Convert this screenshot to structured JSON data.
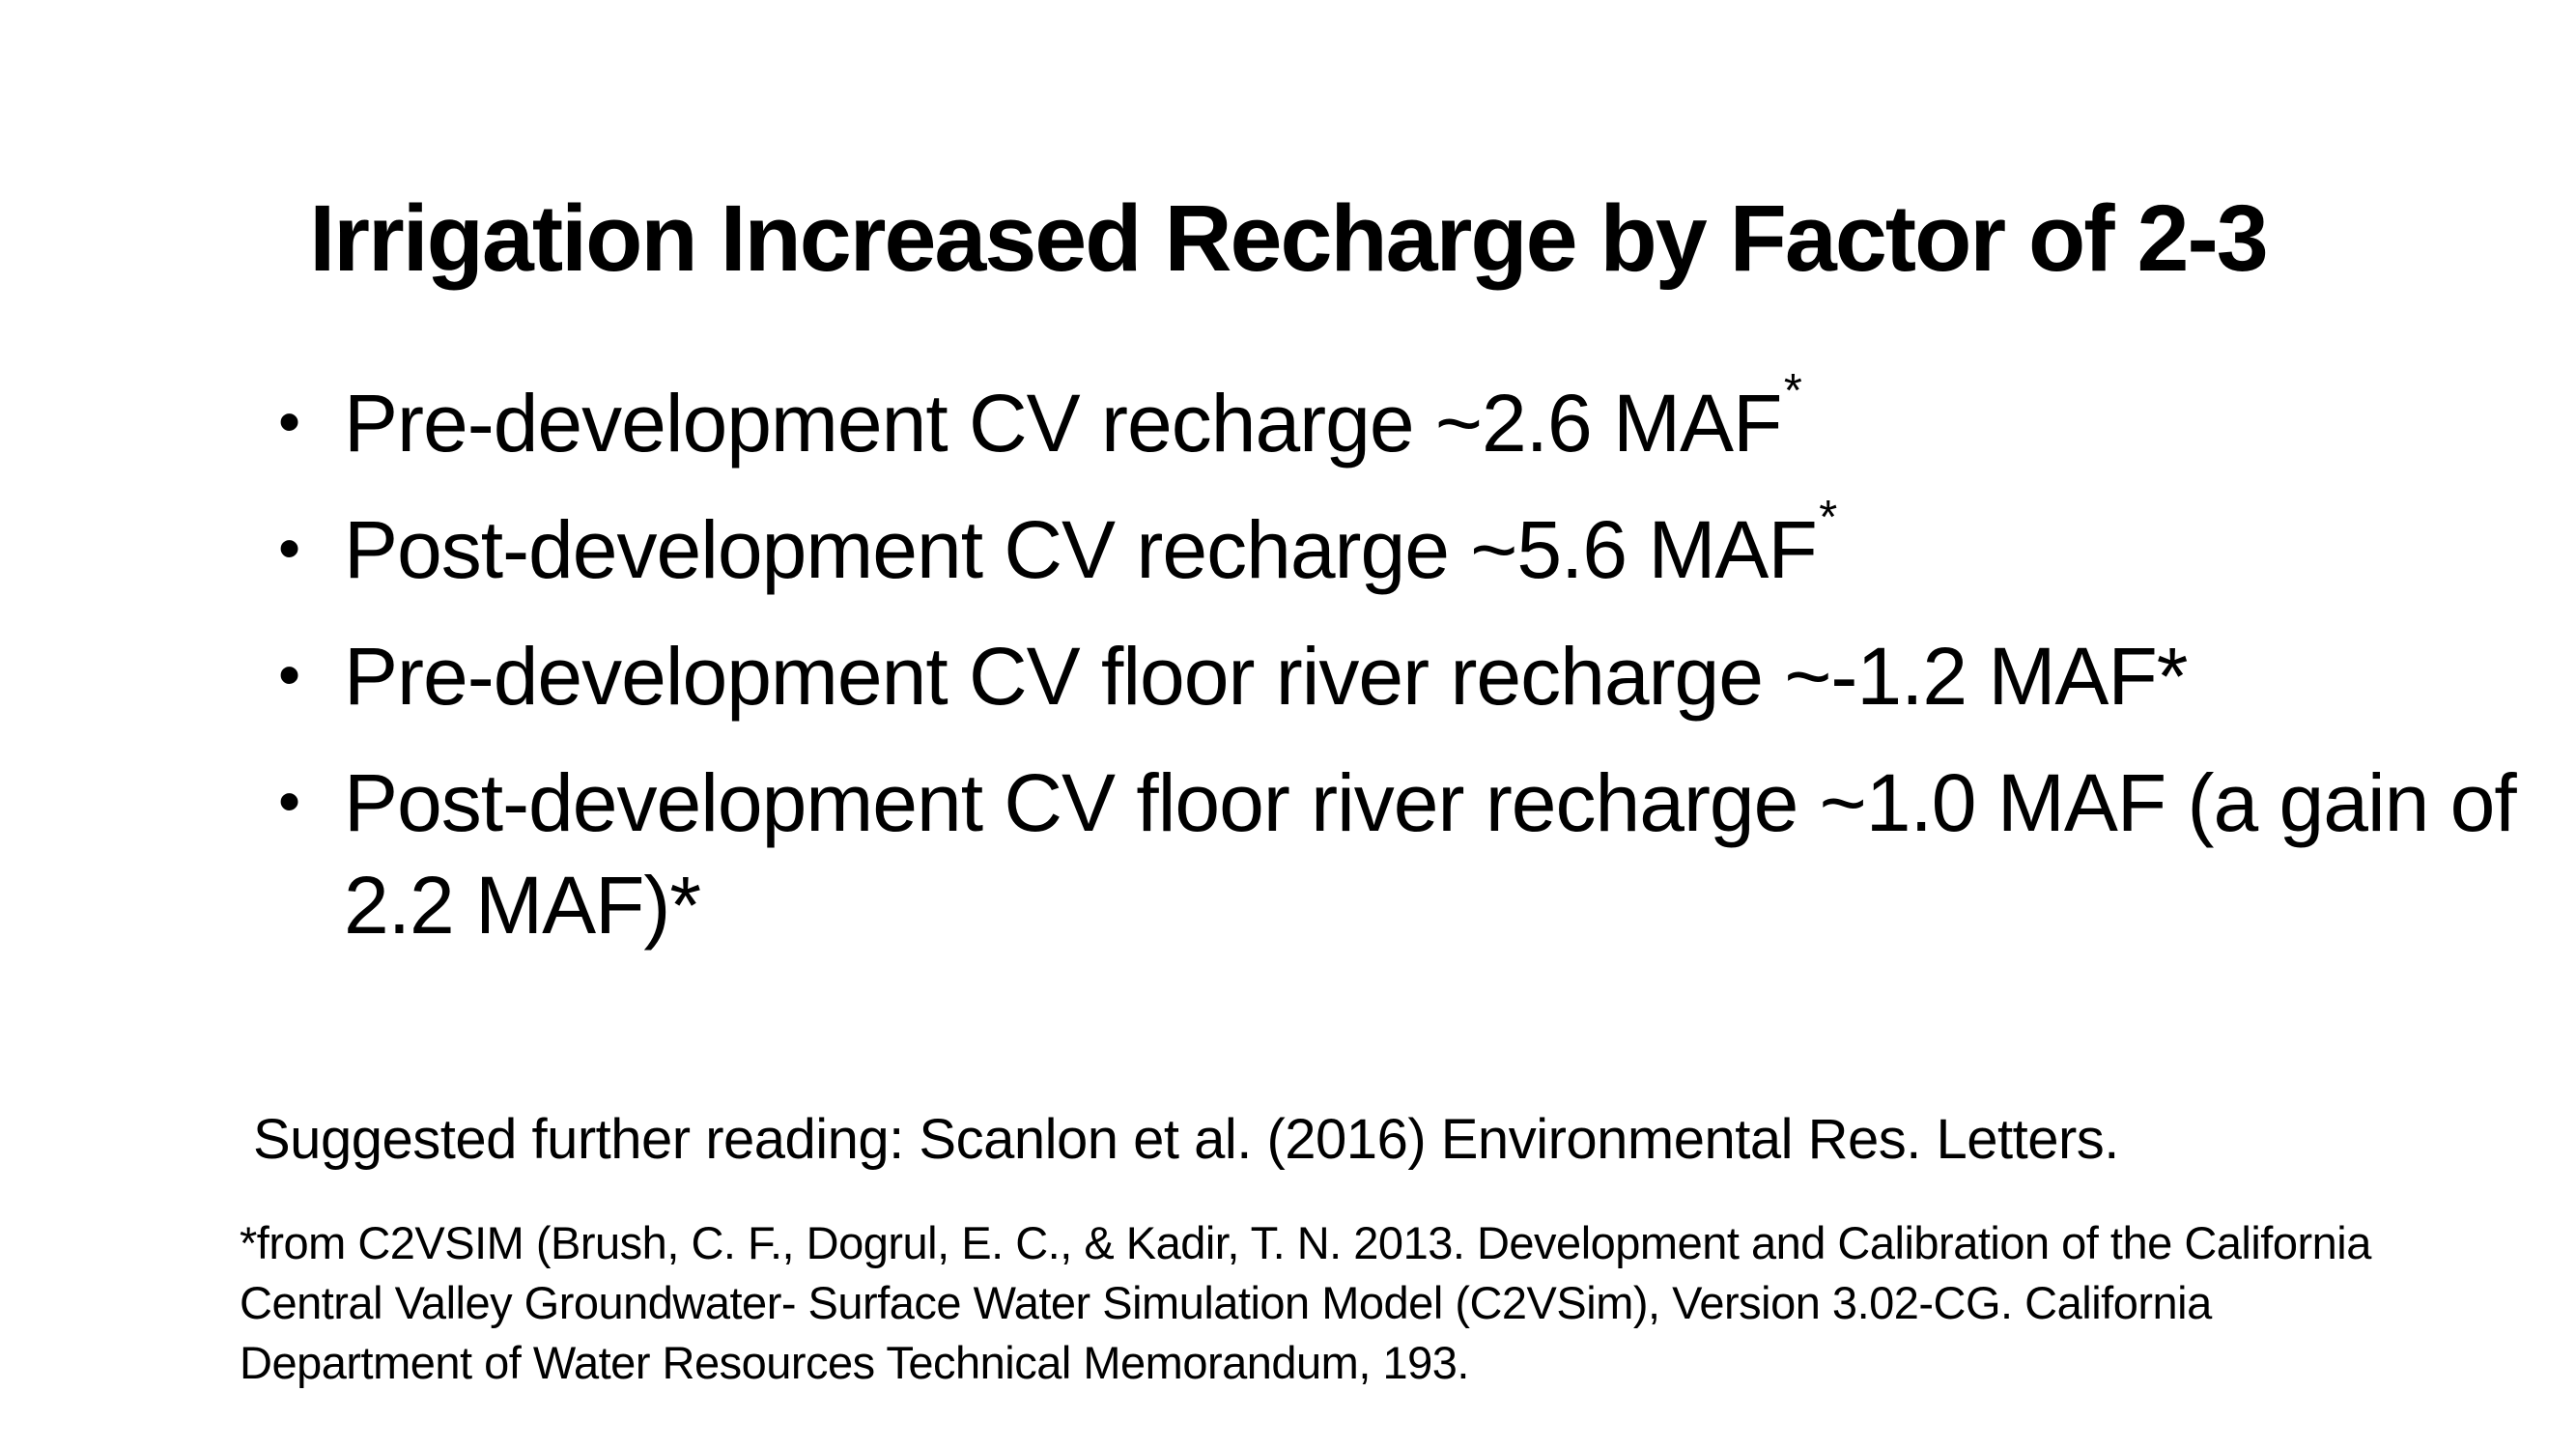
{
  "slide": {
    "title": "Irrigation Increased Recharge by Factor of 2-3",
    "bullet_char": "•",
    "bullets": [
      {
        "text": "Pre-development CV recharge ~2.6 MAF",
        "superscript": "*"
      },
      {
        "text": "Post-development CV recharge ~5.6 MAF",
        "superscript": "*"
      },
      {
        "text": "Pre-development CV floor river recharge ~-1.2 MAF*",
        "superscript": ""
      },
      {
        "text": "Post-development CV floor river recharge ~1.0 MAF (a gain of 2.2 MAF)*",
        "superscript": ""
      }
    ],
    "reading_note": "Suggested further reading: Scanlon et al. (2016) Environmental Res. Letters.",
    "footnote_lines": [
      "*from C2VSIM (Brush, C. F., Dogrul, E. C., & Kadir, T. N. 2013. Development and Calibration of the California",
      "Central Valley Groundwater- Surface Water Simulation Model (C2VSim), Version 3.02-CG. California",
      "Department of Water Resources Technical Memorandum, 193."
    ],
    "colors": {
      "background": "#ffffff",
      "text": "#000000"
    }
  }
}
